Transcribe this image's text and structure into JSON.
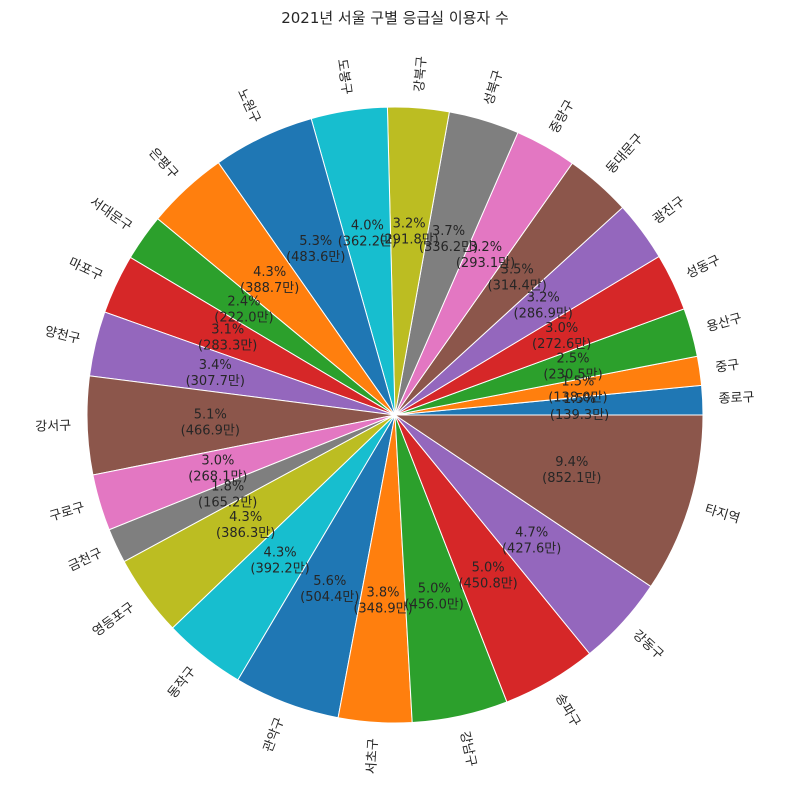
{
  "chart_data": {
    "type": "pie",
    "title": "2021년 서울 구별 응급실 이용자 수",
    "unit": "만",
    "start_angle_deg": 0,
    "direction": "counterclockwise",
    "slices": [
      {
        "label": "종로구",
        "value": 139.3,
        "pct": "1.5%",
        "color": "#1f77b4"
      },
      {
        "label": "중구",
        "value": 138.0,
        "pct": "1.5%",
        "color": "#ff7f0e"
      },
      {
        "label": "용산구",
        "value": 230.5,
        "pct": "2.5%",
        "color": "#2ca02c"
      },
      {
        "label": "성동구",
        "value": 272.6,
        "pct": "3.0%",
        "color": "#d62728"
      },
      {
        "label": "광진구",
        "value": 286.9,
        "pct": "3.2%",
        "color": "#9467bd"
      },
      {
        "label": "동대문구",
        "value": 314.4,
        "pct": "3.5%",
        "color": "#8c564b"
      },
      {
        "label": "중랑구",
        "value": 293.1,
        "pct": "3.2%",
        "color": "#e377c2"
      },
      {
        "label": "성북구",
        "value": 336.2,
        "pct": "3.7%",
        "color": "#7f7f7f"
      },
      {
        "label": "강북구",
        "value": 291.8,
        "pct": "3.2%",
        "color": "#bcbd22"
      },
      {
        "label": "도봉구",
        "value": 362.2,
        "pct": "4.0%",
        "color": "#17becf"
      },
      {
        "label": "노원구",
        "value": 483.6,
        "pct": "5.3%",
        "color": "#1f77b4"
      },
      {
        "label": "은평구",
        "value": 388.7,
        "pct": "4.3%",
        "color": "#ff7f0e"
      },
      {
        "label": "서대문구",
        "value": 222.0,
        "pct": "2.4%",
        "color": "#2ca02c"
      },
      {
        "label": "마포구",
        "value": 283.3,
        "pct": "3.1%",
        "color": "#d62728"
      },
      {
        "label": "양천구",
        "value": 307.7,
        "pct": "3.4%",
        "color": "#9467bd"
      },
      {
        "label": "강서구",
        "value": 466.9,
        "pct": "5.1%",
        "color": "#8c564b"
      },
      {
        "label": "구로구",
        "value": 268.1,
        "pct": "3.0%",
        "color": "#e377c2"
      },
      {
        "label": "금천구",
        "value": 165.2,
        "pct": "1.8%",
        "color": "#7f7f7f"
      },
      {
        "label": "영등포구",
        "value": 386.3,
        "pct": "4.3%",
        "color": "#bcbd22"
      },
      {
        "label": "동작구",
        "value": 392.2,
        "pct": "4.3%",
        "color": "#17becf"
      },
      {
        "label": "관악구",
        "value": 504.4,
        "pct": "5.6%",
        "color": "#1f77b4"
      },
      {
        "label": "서초구",
        "value": 348.9,
        "pct": "3.8%",
        "color": "#ff7f0e"
      },
      {
        "label": "강남구",
        "value": 456.0,
        "pct": "5.0%",
        "color": "#2ca02c"
      },
      {
        "label": "송파구",
        "value": 450.8,
        "pct": "5.0%",
        "color": "#d62728"
      },
      {
        "label": "강동구",
        "value": 427.6,
        "pct": "4.7%",
        "color": "#9467bd"
      },
      {
        "label": "타지역",
        "value": 852.1,
        "pct": "9.4%",
        "color": "#8c564b"
      }
    ]
  }
}
